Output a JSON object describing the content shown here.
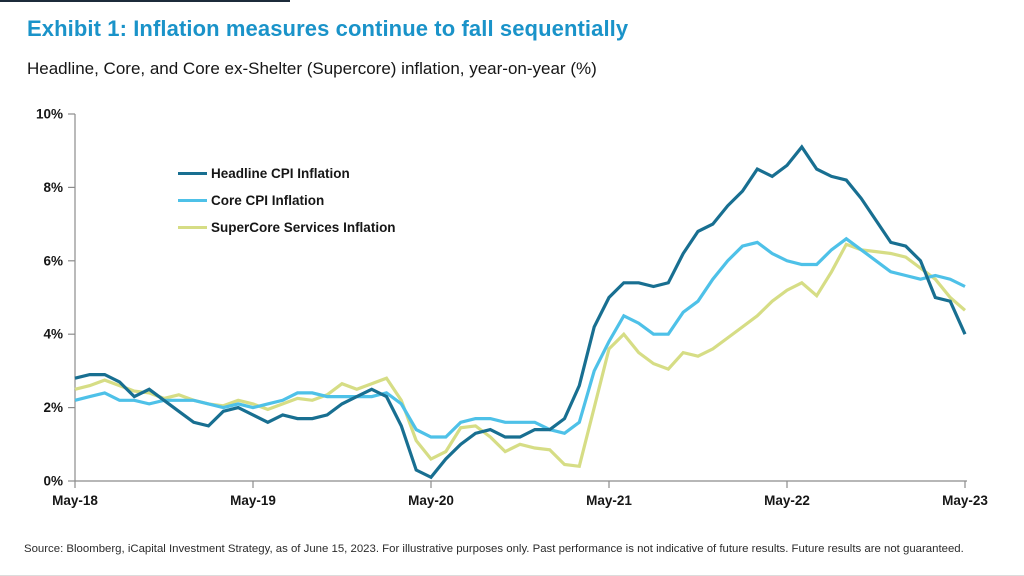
{
  "page": {
    "title": "Exhibit 1: Inflation measures continue to fall sequentially",
    "subtitle": "Headline, Core, and Core ex-Shelter (Supercore) inflation, year-on-year (%)",
    "footer": "Source: Bloomberg, iCapital Investment Strategy, as of June 15, 2023. For illustrative purposes only. Past performance is not indicative of future results. Future results are not guaranteed.",
    "title_color": "#1a93c9"
  },
  "chart_data": {
    "type": "line",
    "title": "Headline, Core, and Core ex-Shelter (Supercore) inflation, year-on-year (%)",
    "xlabel": "",
    "ylabel": "",
    "x_frequency": "monthly",
    "x_range": [
      "May-18",
      "May-23"
    ],
    "x_tick_labels": [
      "May-18",
      "May-19",
      "May-20",
      "May-21",
      "May-22",
      "May-23"
    ],
    "x_ticks_every_n_points": 12,
    "y_tick_labels": [
      "0%",
      "2%",
      "4%",
      "6%",
      "8%",
      "10%"
    ],
    "ylim": [
      0,
      10
    ],
    "grid": false,
    "legend_position": "top-left-inside",
    "axis_color": "#8c8c8c",
    "series": [
      {
        "name": "Headline CPI Inflation",
        "color": "#186f91",
        "values": [
          2.8,
          2.9,
          2.9,
          2.7,
          2.3,
          2.5,
          2.2,
          1.9,
          1.6,
          1.5,
          1.9,
          2.0,
          1.8,
          1.6,
          1.8,
          1.7,
          1.7,
          1.8,
          2.1,
          2.3,
          2.5,
          2.3,
          1.5,
          0.3,
          0.1,
          0.6,
          1.0,
          1.3,
          1.4,
          1.2,
          1.2,
          1.4,
          1.4,
          1.7,
          2.6,
          4.2,
          5.0,
          5.4,
          5.4,
          5.3,
          5.4,
          6.2,
          6.8,
          7.0,
          7.5,
          7.9,
          8.5,
          8.3,
          8.6,
          9.1,
          8.5,
          8.3,
          8.2,
          7.7,
          7.1,
          6.5,
          6.4,
          6.0,
          5.0,
          4.9,
          4.0
        ]
      },
      {
        "name": "Core CPI Inflation",
        "color": "#4ec1e8",
        "values": [
          2.2,
          2.3,
          2.4,
          2.2,
          2.2,
          2.1,
          2.2,
          2.2,
          2.2,
          2.1,
          2.0,
          2.1,
          2.0,
          2.1,
          2.2,
          2.4,
          2.4,
          2.3,
          2.3,
          2.3,
          2.3,
          2.4,
          2.1,
          1.4,
          1.2,
          1.2,
          1.6,
          1.7,
          1.7,
          1.6,
          1.6,
          1.6,
          1.4,
          1.3,
          1.6,
          3.0,
          3.8,
          4.5,
          4.3,
          4.0,
          4.0,
          4.6,
          4.9,
          5.5,
          6.0,
          6.4,
          6.5,
          6.2,
          6.0,
          5.9,
          5.9,
          6.3,
          6.6,
          6.3,
          6.0,
          5.7,
          5.6,
          5.5,
          5.6,
          5.5,
          5.3
        ]
      },
      {
        "name": "SuperCore Services Inflation",
        "color": "#d6dd85",
        "values": [
          2.5,
          2.6,
          2.75,
          2.6,
          2.45,
          2.4,
          2.25,
          2.35,
          2.2,
          2.1,
          2.05,
          2.2,
          2.1,
          1.95,
          2.1,
          2.25,
          2.2,
          2.35,
          2.65,
          2.5,
          2.65,
          2.8,
          2.2,
          1.1,
          0.6,
          0.8,
          1.45,
          1.5,
          1.2,
          0.8,
          1.0,
          0.9,
          0.85,
          0.45,
          0.4,
          2.0,
          3.6,
          4.0,
          3.5,
          3.2,
          3.05,
          3.5,
          3.4,
          3.6,
          3.9,
          4.2,
          4.5,
          4.9,
          5.2,
          5.4,
          5.05,
          5.7,
          6.45,
          6.3,
          6.25,
          6.2,
          6.1,
          5.8,
          5.5,
          5.0,
          4.65
        ]
      }
    ]
  }
}
